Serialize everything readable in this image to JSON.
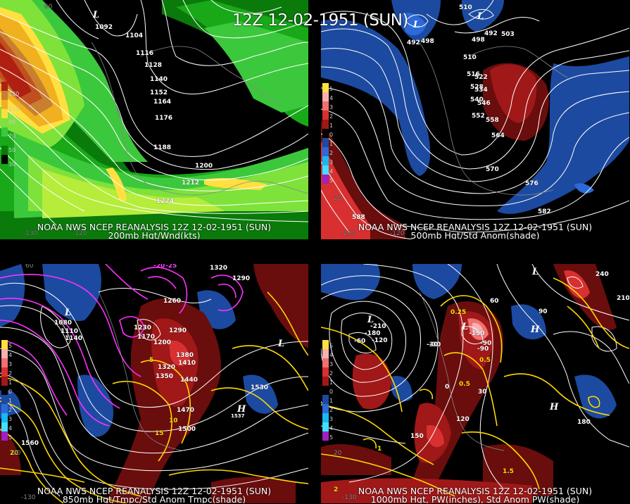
{
  "title": "12Z 12-02-1951 (SUN)",
  "colors": {
    "wind_levels": [
      "#0a7a0a",
      "#18a818",
      "#3cc83c",
      "#7ee23a",
      "#b6ec3a",
      "#ffe040",
      "#f0b020",
      "#c88030",
      "#c05020",
      "#b02010"
    ],
    "anomaly_positive": [
      "#6a0d0d",
      "#a01818",
      "#d83030",
      "#f07070",
      "#f8b0b0"
    ],
    "anomaly_negative": [
      "#1c4aa0",
      "#2b6ad8",
      "#18b8f0",
      "#40e0ff",
      "#a020c0"
    ],
    "contour": "#ffffff",
    "yellow_contour": "#ffd800",
    "magenta_contour": "#ff30ff"
  },
  "panels": [
    {
      "id": "200mb",
      "caption_line1": "NOAA NWS NCEP REANALYSIS 12Z 12-02-1951 (SUN)",
      "caption_line2": "200mb Hgt/Wnd(kts)",
      "legend_labels": [
        "130",
        "110",
        "90",
        "70",
        "50",
        "30"
      ],
      "contour_labels": [
        "1092",
        "1104",
        "1116",
        "1128",
        "1140",
        "1152",
        "1164",
        "1176",
        "1188",
        "1200",
        "1212",
        "1224"
      ],
      "axis_labels": [
        "60",
        "-130",
        "-120"
      ],
      "low_marker": "L"
    },
    {
      "id": "500mb",
      "caption_line1": "NOAA NWS NCEP REANALYSIS 12Z 12-02-1951 (SUN)",
      "caption_line2": "500mb Hgt/Std Anom(shade)",
      "legend_labels": [
        "5",
        "4",
        "3",
        "2",
        "1",
        "0",
        "1",
        "2",
        "3",
        "4",
        "5"
      ],
      "contour_labels": [
        "510",
        "492",
        "498",
        "492",
        "498",
        "503",
        "510",
        "516",
        "522",
        "528",
        "534",
        "540",
        "546",
        "552",
        "558",
        "564",
        "570",
        "576",
        "582",
        "588"
      ],
      "axis_labels": [
        "20",
        "-130",
        "-120"
      ],
      "low_markers": [
        "L",
        "L"
      ]
    },
    {
      "id": "850mb",
      "caption_line1": "NOAA NWS NCEP REANALYSIS 12Z 12-02-1951 (SUN)",
      "caption_line2": "850mb Hgt/Tmpc/Std Anom Tmpc(shade)",
      "legend_labels": [
        "5",
        "4",
        "3",
        "2",
        "1",
        "0",
        "1",
        "2",
        "3",
        "4",
        "5"
      ],
      "contour_labels": [
        "1080",
        "1110",
        "1140",
        "1170",
        "1200",
        "1230",
        "1260",
        "1290",
        "1320",
        "1350",
        "1380",
        "1410",
        "1440",
        "1470",
        "1500",
        "1530",
        "1560",
        "1320",
        "1290"
      ],
      "temp_labels": [
        "-20",
        "-25",
        "5",
        "10",
        "15",
        "20"
      ],
      "axis_labels": [
        "60",
        "20",
        "-130"
      ],
      "low_markers": [
        "L",
        "L"
      ],
      "high_marker": "H",
      "high_value": "1537"
    },
    {
      "id": "1000mb",
      "caption_line1": "NOAA NWS NCEP REANALYSIS 12Z 12-02-1951 (SUN)",
      "caption_line2": "1000mb Hgt, PW(inches), Std Anom PW(shade)",
      "legend_labels": [
        "5",
        "4",
        "3",
        "2",
        "1",
        "0",
        "1",
        "2",
        "3",
        "4",
        "5"
      ],
      "contour_labels": [
        "-210",
        "-180",
        "-150",
        "-120",
        "-90",
        "-60",
        "-30",
        "0",
        "30",
        "60",
        "90",
        "120",
        "150",
        "180",
        "210",
        "240",
        "-30",
        "-90"
      ],
      "pw_labels": [
        "0.25",
        "0.5",
        "0.5",
        "1",
        "1.5",
        "2"
      ],
      "axis_labels": [
        "20",
        "-130"
      ],
      "low_markers": [
        "L",
        "L",
        "L"
      ],
      "high_markers": [
        "H",
        "H"
      ]
    }
  ]
}
